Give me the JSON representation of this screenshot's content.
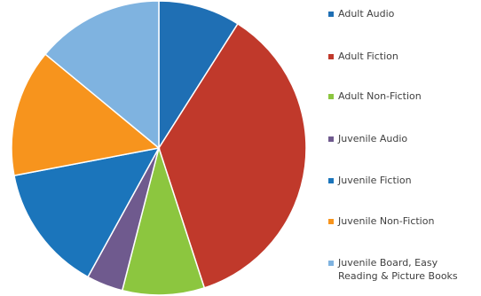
{
  "chart_data": {
    "type": "pie",
    "title": "",
    "legend_position": "right",
    "slices": [
      {
        "label": "Adult Audio",
        "value": 9,
        "color": "#1f6fb4"
      },
      {
        "label": "Adult Fiction",
        "value": 36,
        "color": "#c0392b"
      },
      {
        "label": "Adult Non-Fiction",
        "value": 9,
        "color": "#8cc63f"
      },
      {
        "label": "Juvenile Audio",
        "value": 4,
        "color": "#6f5a8e"
      },
      {
        "label": "Juvenile Fiction",
        "value": 14,
        "color": "#1b75bb"
      },
      {
        "label": "Juvenile Non-Fiction",
        "value": 14,
        "color": "#f7941d"
      },
      {
        "label": "Juvenile Board, Easy Reading & Picture Books",
        "value": 14,
        "color": "#7fb3e0"
      }
    ]
  }
}
